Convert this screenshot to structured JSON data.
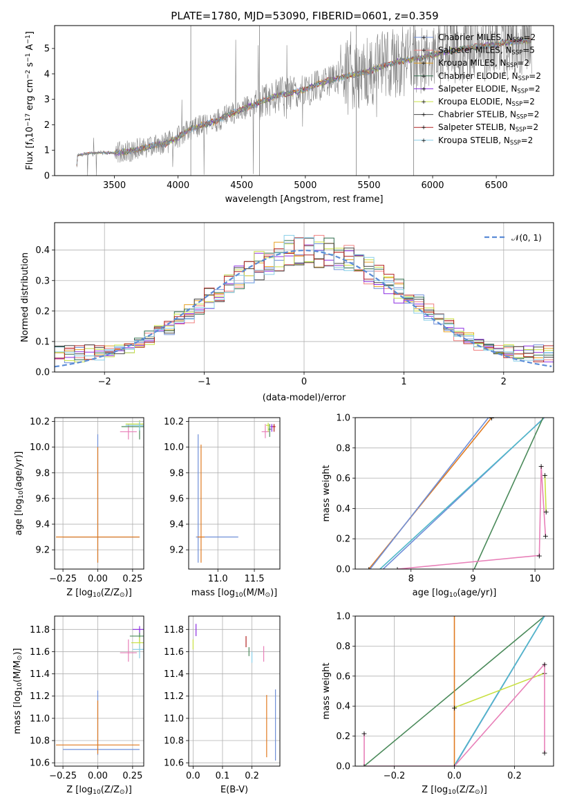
{
  "figure": {
    "title": "PLATE=1780, MJD=53090, FIBERID=0601, z=0.359"
  },
  "colors": {
    "Chabrier MILES": "#6f8fd8",
    "Salpeter MILES": "#f08080",
    "Kroupa MILES": "#e6a020",
    "Chabrier ELODIE": "#2e6b4a",
    "Salpeter ELODIE": "#8a2be2",
    "Kroupa ELODIE": "#c8e040",
    "Chabrier STELIB": "#444444",
    "Salpeter STELIB": "#b22222",
    "Kroupa STELIB": "#87cee8",
    "orange": "#e07a20",
    "pink": "#e87fb8",
    "green": "#4a8a5a",
    "teal": "#50b8c8",
    "gaussian": "#5b8bd6"
  },
  "chart_data": [
    {
      "id": "spectrum",
      "type": "line",
      "xlabel": "wavelength [Angstrom, rest frame]",
      "ylabel": "Flux [f",
      "ylabel_sub": "λ",
      "ylabel_rest": "10",
      "ylabel_sup1": "−17",
      "ylabel_rest2": " erg cm",
      "ylabel_sup2": "−2",
      "ylabel_rest3": " s",
      "ylabel_sup3": "−1",
      "ylabel_rest4": " A",
      "ylabel_sup4": "−1",
      "ylabel_end": "]",
      "xlim": [
        3030,
        6950
      ],
      "ylim": [
        0,
        5.9
      ],
      "xticks": [
        3500,
        4000,
        4500,
        5000,
        5500,
        6000,
        6500
      ],
      "yticks": [
        0,
        1,
        2,
        3,
        4,
        5
      ],
      "legend_position": "upper-right",
      "legend": [
        {
          "base": "Chabrier MILES, N",
          "sub": "SSP",
          "tail": "=2"
        },
        {
          "base": "Salpeter MILES, N",
          "sub": "SSP",
          "tail": "=5"
        },
        {
          "base": "Kroupa MILES, N",
          "sub": "SSP",
          "tail": "=2"
        },
        {
          "base": "Chabrier ELODIE, N",
          "sub": "SSP",
          "tail": "=2"
        },
        {
          "base": "Salpeter ELODIE, N",
          "sub": "SSP",
          "tail": "=2"
        },
        {
          "base": "Kroupa ELODIE, N",
          "sub": "SSP",
          "tail": "=2"
        },
        {
          "base": "Chabrier STELIB, N",
          "sub": "SSP",
          "tail": "=2"
        },
        {
          "base": "Salpeter STELIB, N",
          "sub": "SSP",
          "tail": "=2"
        },
        {
          "base": "Kroupa STELIB, N",
          "sub": "SSP",
          "tail": "=2"
        }
      ],
      "continuum": [
        [
          3200,
          0.0
        ],
        [
          3210,
          0.8
        ],
        [
          3300,
          0.88
        ],
        [
          3400,
          0.9
        ],
        [
          3500,
          0.9
        ],
        [
          3600,
          0.95
        ],
        [
          3700,
          1.05
        ],
        [
          3800,
          1.2
        ],
        [
          3900,
          1.25
        ],
        [
          4000,
          1.5
        ],
        [
          4100,
          1.85
        ],
        [
          4200,
          2.0
        ],
        [
          4300,
          2.15
        ],
        [
          4400,
          2.4
        ],
        [
          4500,
          2.6
        ],
        [
          4600,
          2.8
        ],
        [
          4700,
          3.0
        ],
        [
          4800,
          3.2
        ],
        [
          4900,
          3.25
        ],
        [
          5000,
          3.4
        ],
        [
          5100,
          3.6
        ],
        [
          5200,
          3.75
        ],
        [
          5300,
          3.9
        ],
        [
          5400,
          4.0
        ],
        [
          5500,
          4.1
        ],
        [
          5600,
          4.3
        ],
        [
          5700,
          4.45
        ],
        [
          5800,
          4.55
        ],
        [
          5900,
          4.6
        ],
        [
          6000,
          4.75
        ],
        [
          6100,
          4.85
        ],
        [
          6200,
          4.95
        ],
        [
          6300,
          5.05
        ],
        [
          6400,
          5.1
        ],
        [
          6500,
          5.15
        ],
        [
          6600,
          5.25
        ],
        [
          6700,
          5.3
        ],
        [
          6780,
          5.3
        ]
      ],
      "sky_lines": [
        4100,
        4640,
        5400,
        5850
      ]
    },
    {
      "id": "residuals",
      "type": "bar",
      "xlabel": "(data-model)/error",
      "ylabel": "Normed distribution",
      "xlim": [
        -2.5,
        2.5
      ],
      "ylim": [
        0,
        0.49
      ],
      "xticks": [
        -2,
        -1,
        0,
        1,
        2
      ],
      "xticklabels": [
        "−2",
        "−1",
        "0",
        "1",
        "2"
      ],
      "yticks": [
        0.0,
        0.1,
        0.2,
        0.3,
        0.4
      ],
      "yticklabels": [
        "0.0",
        "0.1",
        "0.2",
        "0.3",
        "0.4"
      ],
      "legend_position": "upper-right",
      "legend": [
        {
          "label": "𝒩(0, 1)"
        }
      ],
      "bin_width": 0.1
    },
    {
      "id": "age-vs-Z",
      "type": "scatter",
      "xlabel": "Z [log",
      "xlabel_sub": "10",
      "xlabel_rest": "(Z/Z",
      "xlabel_sub2": "⊙",
      "xlabel_end": ")]",
      "ylabel": "age  [log",
      "ylabel_sub": "10",
      "ylabel_rest": "(age/yr)]",
      "xlim": [
        -0.31,
        0.33
      ],
      "ylim": [
        9.05,
        10.23
      ],
      "xticks": [
        -0.25,
        0.0,
        0.25
      ],
      "xticklabels": [
        "−0.25",
        "0.00",
        "0.25"
      ],
      "yticks": [
        9.2,
        9.4,
        9.6,
        9.8,
        10.0,
        10.2
      ],
      "yticklabels": [
        "9.2",
        "9.4",
        "9.6",
        "9.8",
        "10.0",
        "10.2"
      ]
    },
    {
      "id": "age-vs-mass",
      "type": "scatter",
      "xlabel": "mass [log",
      "xlabel_sub": "10",
      "xlabel_rest": "(M/M",
      "xlabel_sub2": "⊙",
      "xlabel_end": ")]",
      "xlim": [
        10.6,
        11.85
      ],
      "ylim": [
        9.05,
        10.23
      ],
      "xticks": [
        11.0,
        11.5
      ],
      "xticklabels": [
        "11.0",
        "11.5"
      ],
      "yticks": [
        9.2,
        9.4,
        9.6,
        9.8,
        10.0,
        10.2
      ],
      "yticklabels": [
        "9.2",
        "9.4",
        "9.6",
        "9.8",
        "10.0",
        "10.2"
      ]
    },
    {
      "id": "weight-vs-age",
      "type": "line",
      "xlabel": "age  [log",
      "xlabel_sub": "10",
      "xlabel_rest": "(age/yr)]",
      "ylabel": "mass weight",
      "xlim": [
        7.1,
        10.3
      ],
      "ylim": [
        0,
        1
      ],
      "xticks": [
        8,
        9,
        10
      ],
      "xticklabels": [
        "8",
        "9",
        "10"
      ],
      "yticks": [
        0.0,
        0.2,
        0.4,
        0.6,
        0.8,
        1.0
      ],
      "yticklabels": [
        "0.0",
        "0.2",
        "0.4",
        "0.6",
        "0.8",
        "1.0"
      ]
    },
    {
      "id": "mass-vs-Z",
      "type": "scatter",
      "xlabel": "Z [log",
      "xlabel_sub": "10",
      "xlabel_rest": "(Z/Z",
      "xlabel_sub2": "⊙",
      "xlabel_end": ")]",
      "ylabel": "mass [log",
      "ylabel_sub": "10",
      "ylabel_rest": "(M/M",
      "ylabel_sub2": "⊙",
      "ylabel_end": ")]",
      "xlim": [
        -0.31,
        0.33
      ],
      "ylim": [
        10.57,
        11.92
      ],
      "xticks": [
        -0.25,
        0.0,
        0.25
      ],
      "xticklabels": [
        "−0.25",
        "0.00",
        "0.25"
      ],
      "yticks": [
        10.6,
        10.8,
        11.0,
        11.2,
        11.4,
        11.6,
        11.8
      ],
      "yticklabels": [
        "10.6",
        "10.8",
        "11.0",
        "11.2",
        "11.4",
        "11.6",
        "11.8"
      ]
    },
    {
      "id": "mass-vs-ebv",
      "type": "scatter",
      "xlabel": "E(B-V)",
      "xlim": [
        -0.015,
        0.295
      ],
      "ylim": [
        10.57,
        11.92
      ],
      "xticks": [
        0.0,
        0.1,
        0.2
      ],
      "xticklabels": [
        "0.0",
        "0.1",
        "0.2"
      ],
      "yticks": [
        10.6,
        10.8,
        11.0,
        11.2,
        11.4,
        11.6,
        11.8
      ],
      "yticklabels": [
        "10.6",
        "10.8",
        "11.0",
        "11.2",
        "11.4",
        "11.6",
        "11.8"
      ]
    },
    {
      "id": "weight-vs-Z",
      "type": "line",
      "xlabel": "Z [log",
      "xlabel_sub": "10",
      "xlabel_rest": "(Z/Z",
      "xlabel_sub2": "⊙",
      "xlabel_end": ")]",
      "ylabel": "mass weight",
      "xlim": [
        -0.33,
        0.33
      ],
      "ylim": [
        0,
        1
      ],
      "xticks": [
        -0.2,
        0.0,
        0.2
      ],
      "xticklabels": [
        "−0.2",
        "0.0",
        "0.2"
      ],
      "yticks": [
        0.0,
        0.2,
        0.4,
        0.6,
        0.8,
        1.0
      ],
      "yticklabels": [
        "0.0",
        "0.2",
        "0.4",
        "0.6",
        "0.8",
        "1.0"
      ]
    }
  ]
}
